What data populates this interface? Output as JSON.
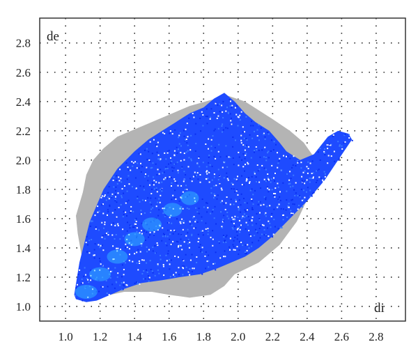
{
  "chart_data": {
    "type": "scatter",
    "title": "",
    "xlabel": "di",
    "ylabel": "de",
    "xlim": [
      0.85,
      2.97
    ],
    "ylim": [
      0.9,
      2.97
    ],
    "xticks": [
      "1.0",
      "1.2",
      "1.4",
      "1.6",
      "1.8",
      "2.0",
      "2.2",
      "2.4",
      "2.6",
      "2.8"
    ],
    "yticks": [
      "1.0",
      "1.2",
      "1.4",
      "1.6",
      "1.8",
      "2.0",
      "2.2",
      "2.4",
      "2.6",
      "2.8"
    ],
    "grid": true,
    "grid_style": "dotted",
    "series": [
      {
        "role": "background",
        "color": "#b4b4b4",
        "outline_x": [
          1.06,
          1.1,
          1.12,
          1.16,
          1.22,
          1.3,
          1.42,
          1.52,
          1.62,
          1.72,
          1.84,
          1.94,
          2.04,
          2.12,
          2.2,
          2.3,
          2.38,
          2.44,
          2.42,
          2.34,
          2.24,
          2.12,
          1.98,
          1.92,
          1.84,
          1.72,
          1.6,
          1.5,
          1.42,
          1.34,
          1.26,
          1.2,
          1.16,
          1.1,
          1.07,
          1.06
        ],
        "outline_y": [
          1.62,
          1.78,
          1.9,
          2.0,
          2.08,
          2.16,
          2.22,
          2.27,
          2.32,
          2.37,
          2.41,
          2.44,
          2.4,
          2.34,
          2.28,
          2.2,
          2.12,
          2.02,
          1.78,
          1.58,
          1.42,
          1.3,
          1.22,
          1.14,
          1.08,
          1.06,
          1.08,
          1.1,
          1.1,
          1.1,
          1.08,
          1.06,
          1.1,
          1.3,
          1.5,
          1.62
        ]
      },
      {
        "role": "fingerprint",
        "color": "#1e4bff",
        "outline_x": [
          1.05,
          1.08,
          1.14,
          1.22,
          1.3,
          1.4,
          1.48,
          1.56,
          1.64,
          1.72,
          1.8,
          1.86,
          1.92,
          1.98,
          2.04,
          2.1,
          2.18,
          2.24,
          2.28,
          2.36,
          2.44,
          2.52,
          2.58,
          2.64,
          2.66,
          2.58,
          2.5,
          2.4,
          2.3,
          2.2,
          2.12,
          2.04,
          1.96,
          1.88,
          1.78,
          1.66,
          1.56,
          1.44,
          1.34,
          1.26,
          1.18,
          1.12,
          1.06,
          1.05
        ],
        "outline_y": [
          1.08,
          1.3,
          1.58,
          1.8,
          1.94,
          2.06,
          2.14,
          2.2,
          2.26,
          2.32,
          2.36,
          2.42,
          2.46,
          2.4,
          2.32,
          2.26,
          2.2,
          2.12,
          2.06,
          2.0,
          2.04,
          2.16,
          2.2,
          2.18,
          2.14,
          2.0,
          1.86,
          1.72,
          1.6,
          1.48,
          1.4,
          1.34,
          1.3,
          1.26,
          1.22,
          1.2,
          1.18,
          1.16,
          1.12,
          1.08,
          1.04,
          1.03,
          1.05,
          1.08
        ]
      },
      {
        "role": "high-density",
        "color": "#35c8ff",
        "points": [
          {
            "x": 1.12,
            "y": 1.1
          },
          {
            "x": 1.2,
            "y": 1.22
          },
          {
            "x": 1.3,
            "y": 1.34
          },
          {
            "x": 1.4,
            "y": 1.46
          },
          {
            "x": 1.5,
            "y": 1.56
          },
          {
            "x": 1.62,
            "y": 1.66
          },
          {
            "x": 1.72,
            "y": 1.74
          }
        ]
      }
    ]
  }
}
